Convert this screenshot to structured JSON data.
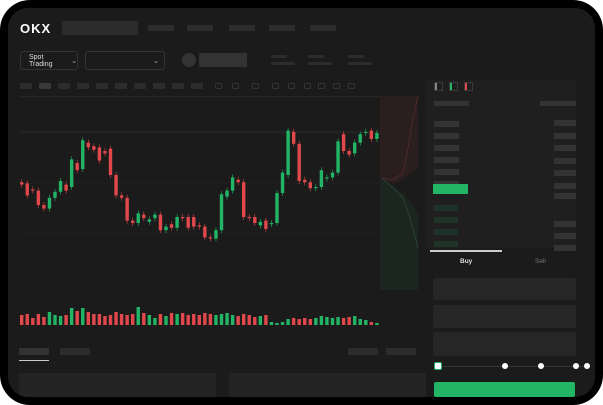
{
  "brand": {
    "logo": "OKX"
  },
  "controls": {
    "mode_label": "Spot Trading",
    "mode_chevron": "⌄",
    "pair_chevron": "⌄"
  },
  "orderbook": {
    "icons": [
      "orderbook-both-icon",
      "orderbook-buy-icon",
      "orderbook-sell-icon"
    ]
  },
  "trade": {
    "tabs": [
      {
        "label": "Buy"
      },
      {
        "label": "Sell"
      }
    ],
    "slider_percent": 0,
    "accent": "#22b565"
  },
  "colors": {
    "up": "#22b565",
    "down": "#e0484b",
    "background": "#1b1b1b"
  },
  "candles": [
    [
      44,
      42
    ],
    [
      43,
      33
    ],
    [
      38,
      37
    ],
    [
      37,
      25
    ],
    [
      25,
      22
    ],
    [
      22,
      31
    ],
    [
      31,
      36
    ],
    [
      36,
      45
    ],
    [
      42,
      37
    ],
    [
      40,
      63
    ],
    [
      60,
      54
    ],
    [
      55,
      79
    ],
    [
      77,
      73
    ],
    [
      74,
      71
    ],
    [
      73,
      62
    ],
    [
      70,
      68
    ],
    [
      72,
      50
    ],
    [
      50,
      33
    ],
    [
      33,
      31
    ],
    [
      31,
      12
    ],
    [
      12,
      10
    ],
    [
      10,
      18
    ],
    [
      17,
      14
    ],
    [
      11,
      13
    ],
    [
      14,
      17
    ],
    [
      17,
      4
    ],
    [
      4,
      7
    ],
    [
      9,
      6
    ],
    [
      6,
      15
    ],
    [
      15,
      14
    ],
    [
      15,
      6
    ],
    [
      15,
      7
    ],
    [
      8,
      7
    ],
    [
      7,
      -2
    ],
    [
      -2,
      -3
    ],
    [
      -3,
      4
    ],
    [
      4,
      34
    ],
    [
      32,
      37
    ],
    [
      37,
      48
    ],
    [
      46,
      44
    ],
    [
      44,
      15
    ],
    [
      15,
      14
    ],
    [
      15,
      10
    ],
    [
      8,
      11
    ],
    [
      12,
      5
    ],
    [
      10,
      10
    ],
    [
      10,
      35
    ],
    [
      35,
      52
    ],
    [
      50,
      87
    ],
    [
      86,
      76
    ],
    [
      76,
      45
    ],
    [
      46,
      44
    ],
    [
      44,
      39
    ],
    [
      40,
      40
    ],
    [
      40,
      54
    ],
    [
      47,
      48
    ],
    [
      48,
      52
    ],
    [
      52,
      78
    ],
    [
      84,
      70
    ],
    [
      70,
      67
    ],
    [
      68,
      77
    ],
    [
      77,
      84
    ],
    [
      85,
      86
    ],
    [
      87,
      80
    ],
    [
      80,
      85
    ]
  ],
  "volumes": [
    10,
    11,
    7,
    11,
    8,
    13,
    10,
    9,
    10,
    17,
    14,
    17,
    13,
    11,
    11,
    9,
    10,
    13,
    11,
    10,
    11,
    18,
    12,
    10,
    7,
    11,
    9,
    12,
    11,
    12,
    10,
    11,
    10,
    12,
    11,
    10,
    11,
    12,
    10,
    9,
    11,
    10,
    8,
    9,
    10,
    3,
    2,
    3,
    6,
    7,
    6,
    7,
    6,
    7,
    9,
    8,
    7,
    8,
    7,
    8,
    9,
    6,
    5,
    3,
    2
  ]
}
